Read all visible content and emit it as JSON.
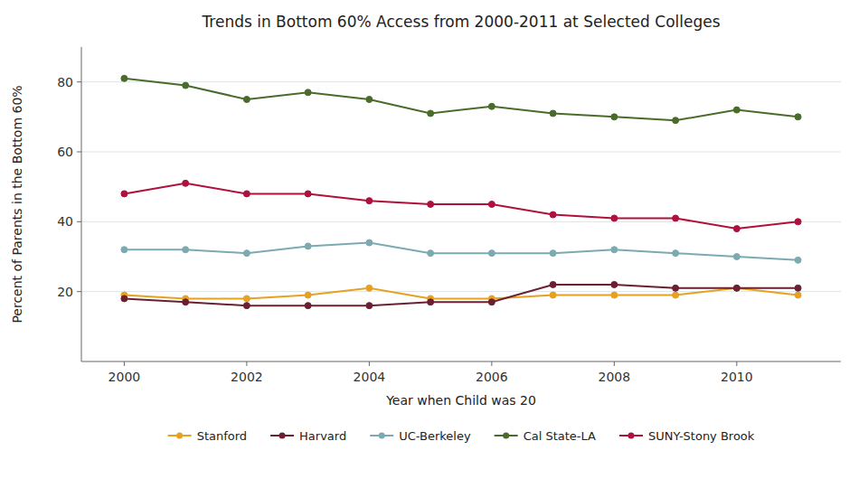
{
  "chart_data": {
    "type": "line",
    "title": "Trends in Bottom 60% Access from 2000-2011 at Selected Colleges",
    "xlabel": "Year when Child was 20",
    "ylabel": "Percent of Parents in the Bottom 60%",
    "x": [
      2000,
      2001,
      2002,
      2003,
      2004,
      2005,
      2006,
      2007,
      2008,
      2009,
      2010,
      2011
    ],
    "series": [
      {
        "name": "Stanford",
        "color": "#E8A020",
        "values": [
          19,
          18,
          18,
          19,
          21,
          18,
          18,
          19,
          19,
          19,
          21,
          19
        ]
      },
      {
        "name": "Harvard",
        "color": "#6B2032",
        "values": [
          18,
          17,
          16,
          16,
          16,
          17,
          17,
          22,
          22,
          21,
          21,
          21
        ]
      },
      {
        "name": "UC-Berkeley",
        "color": "#7BAAB0",
        "values": [
          32,
          32,
          31,
          33,
          34,
          31,
          31,
          31,
          32,
          31,
          30,
          29
        ]
      },
      {
        "name": "Cal State-LA",
        "color": "#4A6B2A",
        "values": [
          81,
          79,
          75,
          77,
          75,
          71,
          73,
          71,
          70,
          69,
          72,
          70
        ]
      },
      {
        "name": "SUNY-Stony Brook",
        "color": "#B0103C",
        "values": [
          48,
          51,
          48,
          48,
          46,
          45,
          45,
          42,
          41,
          41,
          38,
          40
        ]
      }
    ],
    "xlim": [
      1999.3,
      2011.7
    ],
    "xticks": [
      2000,
      2002,
      2004,
      2006,
      2008,
      2010
    ],
    "ylim": [
      0,
      90
    ],
    "yticks": [
      20,
      40,
      60,
      80
    ],
    "grid": true,
    "legend": "bottom",
    "marker": "circle"
  }
}
